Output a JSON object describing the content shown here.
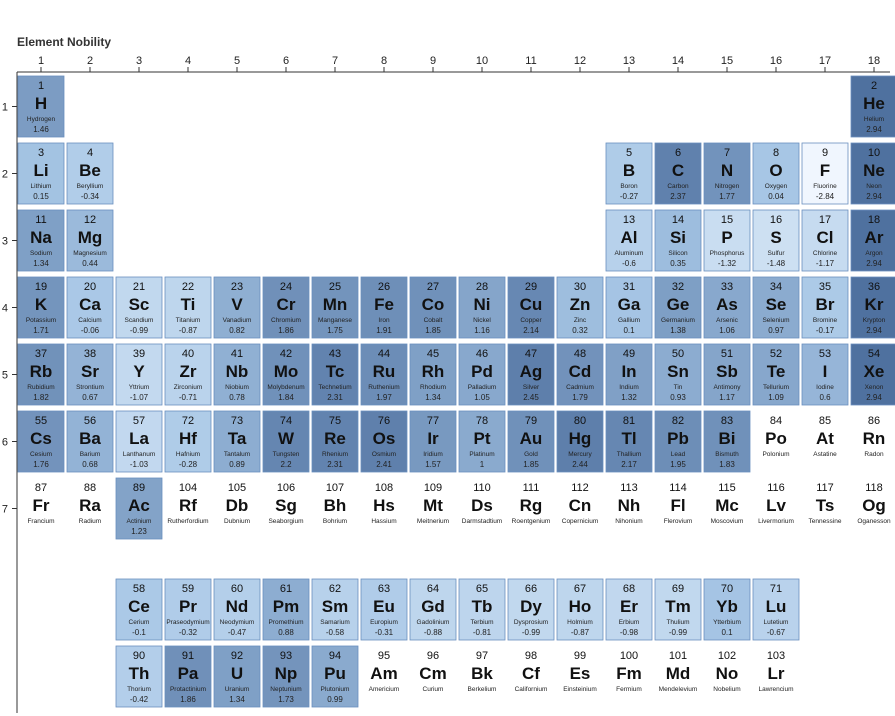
{
  "chart_data": {
    "type": "heatmap",
    "title": "Element Nobility",
    "x_ticks": [
      "1",
      "2",
      "3",
      "4",
      "5",
      "6",
      "7",
      "8",
      "9",
      "10",
      "11",
      "12",
      "13",
      "14",
      "15",
      "16",
      "17",
      "18"
    ],
    "y_ticks": [
      "1",
      "2",
      "3",
      "4",
      "5",
      "6",
      "7"
    ],
    "colors": {
      "high": "#4d6f9e",
      "mid": "#a8c7e6",
      "low": "#f4f9ff",
      "empty": "#ffffff",
      "border": "#6a8fbf"
    },
    "value_range": [
      -3,
      3
    ],
    "elements": [
      {
        "n": "1",
        "sym": "H",
        "name": "Hydrogen",
        "v": "1.46",
        "row": 1,
        "col": 1
      },
      {
        "n": "2",
        "sym": "He",
        "name": "Helium",
        "v": "2.94",
        "row": 1,
        "col": 18
      },
      {
        "n": "3",
        "sym": "Li",
        "name": "Lithium",
        "v": "0.15",
        "row": 2,
        "col": 1
      },
      {
        "n": "4",
        "sym": "Be",
        "name": "Beryllium",
        "v": "-0.34",
        "row": 2,
        "col": 2
      },
      {
        "n": "5",
        "sym": "B",
        "name": "Boron",
        "v": "-0.27",
        "row": 2,
        "col": 13
      },
      {
        "n": "6",
        "sym": "C",
        "name": "Carbon",
        "v": "2.37",
        "row": 2,
        "col": 14
      },
      {
        "n": "7",
        "sym": "N",
        "name": "Nitrogen",
        "v": "1.77",
        "row": 2,
        "col": 15
      },
      {
        "n": "8",
        "sym": "O",
        "name": "Oxygen",
        "v": "0.04",
        "row": 2,
        "col": 16
      },
      {
        "n": "9",
        "sym": "F",
        "name": "Fluorine",
        "v": "-2.84",
        "row": 2,
        "col": 17
      },
      {
        "n": "10",
        "sym": "Ne",
        "name": "Neon",
        "v": "2.94",
        "row": 2,
        "col": 18
      },
      {
        "n": "11",
        "sym": "Na",
        "name": "Sodium",
        "v": "1.34",
        "row": 3,
        "col": 1
      },
      {
        "n": "12",
        "sym": "Mg",
        "name": "Magnesium",
        "v": "0.44",
        "row": 3,
        "col": 2
      },
      {
        "n": "13",
        "sym": "Al",
        "name": "Aluminum",
        "v": "-0.6",
        "row": 3,
        "col": 13
      },
      {
        "n": "14",
        "sym": "Si",
        "name": "Silicon",
        "v": "0.35",
        "row": 3,
        "col": 14
      },
      {
        "n": "15",
        "sym": "P",
        "name": "Phosphorus",
        "v": "-1.32",
        "row": 3,
        "col": 15
      },
      {
        "n": "16",
        "sym": "S",
        "name": "Sulfur",
        "v": "-1.48",
        "row": 3,
        "col": 16
      },
      {
        "n": "17",
        "sym": "Cl",
        "name": "Chlorine",
        "v": "-1.17",
        "row": 3,
        "col": 17
      },
      {
        "n": "18",
        "sym": "Ar",
        "name": "Argon",
        "v": "2.94",
        "row": 3,
        "col": 18
      },
      {
        "n": "19",
        "sym": "K",
        "name": "Potassium",
        "v": "1.71",
        "row": 4,
        "col": 1
      },
      {
        "n": "20",
        "sym": "Ca",
        "name": "Calcium",
        "v": "-0.06",
        "row": 4,
        "col": 2
      },
      {
        "n": "21",
        "sym": "Sc",
        "name": "Scandium",
        "v": "-0.99",
        "row": 4,
        "col": 3
      },
      {
        "n": "22",
        "sym": "Ti",
        "name": "Titanium",
        "v": "-0.87",
        "row": 4,
        "col": 4
      },
      {
        "n": "23",
        "sym": "V",
        "name": "Vanadium",
        "v": "0.82",
        "row": 4,
        "col": 5
      },
      {
        "n": "24",
        "sym": "Cr",
        "name": "Chromium",
        "v": "1.86",
        "row": 4,
        "col": 6
      },
      {
        "n": "25",
        "sym": "Mn",
        "name": "Manganese",
        "v": "1.75",
        "row": 4,
        "col": 7
      },
      {
        "n": "26",
        "sym": "Fe",
        "name": "Iron",
        "v": "1.91",
        "row": 4,
        "col": 8
      },
      {
        "n": "27",
        "sym": "Co",
        "name": "Cobalt",
        "v": "1.85",
        "row": 4,
        "col": 9
      },
      {
        "n": "28",
        "sym": "Ni",
        "name": "Nickel",
        "v": "1.16",
        "row": 4,
        "col": 10
      },
      {
        "n": "29",
        "sym": "Cu",
        "name": "Copper",
        "v": "2.14",
        "row": 4,
        "col": 11
      },
      {
        "n": "30",
        "sym": "Zn",
        "name": "Zinc",
        "v": "0.32",
        "row": 4,
        "col": 12
      },
      {
        "n": "31",
        "sym": "Ga",
        "name": "Gallium",
        "v": "0.1",
        "row": 4,
        "col": 13
      },
      {
        "n": "32",
        "sym": "Ge",
        "name": "Germanium",
        "v": "1.38",
        "row": 4,
        "col": 14
      },
      {
        "n": "33",
        "sym": "As",
        "name": "Arsenic",
        "v": "1.06",
        "row": 4,
        "col": 15
      },
      {
        "n": "34",
        "sym": "Se",
        "name": "Selenium",
        "v": "0.97",
        "row": 4,
        "col": 16
      },
      {
        "n": "35",
        "sym": "Br",
        "name": "Bromine",
        "v": "-0.17",
        "row": 4,
        "col": 17
      },
      {
        "n": "36",
        "sym": "Kr",
        "name": "Krypton",
        "v": "2.94",
        "row": 4,
        "col": 18
      },
      {
        "n": "37",
        "sym": "Rb",
        "name": "Rubidium",
        "v": "1.82",
        "row": 5,
        "col": 1
      },
      {
        "n": "38",
        "sym": "Sr",
        "name": "Strontium",
        "v": "0.67",
        "row": 5,
        "col": 2
      },
      {
        "n": "39",
        "sym": "Y",
        "name": "Yttrium",
        "v": "-1.07",
        "row": 5,
        "col": 3
      },
      {
        "n": "40",
        "sym": "Zr",
        "name": "Zirconium",
        "v": "-0.71",
        "row": 5,
        "col": 4
      },
      {
        "n": "41",
        "sym": "Nb",
        "name": "Niobium",
        "v": "0.78",
        "row": 5,
        "col": 5
      },
      {
        "n": "42",
        "sym": "Mo",
        "name": "Molybdenum",
        "v": "1.84",
        "row": 5,
        "col": 6
      },
      {
        "n": "43",
        "sym": "Tc",
        "name": "Technetium",
        "v": "2.31",
        "row": 5,
        "col": 7
      },
      {
        "n": "44",
        "sym": "Ru",
        "name": "Ruthenium",
        "v": "1.97",
        "row": 5,
        "col": 8
      },
      {
        "n": "45",
        "sym": "Rh",
        "name": "Rhodium",
        "v": "1.34",
        "row": 5,
        "col": 9
      },
      {
        "n": "46",
        "sym": "Pd",
        "name": "Palladium",
        "v": "1.05",
        "row": 5,
        "col": 10
      },
      {
        "n": "47",
        "sym": "Ag",
        "name": "Silver",
        "v": "2.45",
        "row": 5,
        "col": 11
      },
      {
        "n": "48",
        "sym": "Cd",
        "name": "Cadmium",
        "v": "1.79",
        "row": 5,
        "col": 12
      },
      {
        "n": "49",
        "sym": "In",
        "name": "Indium",
        "v": "1.32",
        "row": 5,
        "col": 13
      },
      {
        "n": "50",
        "sym": "Sn",
        "name": "Tin",
        "v": "0.93",
        "row": 5,
        "col": 14
      },
      {
        "n": "51",
        "sym": "Sb",
        "name": "Antimony",
        "v": "1.17",
        "row": 5,
        "col": 15
      },
      {
        "n": "52",
        "sym": "Te",
        "name": "Tellurium",
        "v": "1.09",
        "row": 5,
        "col": 16
      },
      {
        "n": "53",
        "sym": "I",
        "name": "Iodine",
        "v": "0.6",
        "row": 5,
        "col": 17
      },
      {
        "n": "54",
        "sym": "Xe",
        "name": "Xenon",
        "v": "2.94",
        "row": 5,
        "col": 18
      },
      {
        "n": "55",
        "sym": "Cs",
        "name": "Cesium",
        "v": "1.76",
        "row": 6,
        "col": 1
      },
      {
        "n": "56",
        "sym": "Ba",
        "name": "Barium",
        "v": "0.68",
        "row": 6,
        "col": 2
      },
      {
        "n": "57",
        "sym": "La",
        "name": "Lanthanum",
        "v": "-1.03",
        "row": 6,
        "col": 3
      },
      {
        "n": "72",
        "sym": "Hf",
        "name": "Hafnium",
        "v": "-0.28",
        "row": 6,
        "col": 4
      },
      {
        "n": "73",
        "sym": "Ta",
        "name": "Tantalum",
        "v": "0.89",
        "row": 6,
        "col": 5
      },
      {
        "n": "74",
        "sym": "W",
        "name": "Tungsten",
        "v": "2.2",
        "row": 6,
        "col": 6
      },
      {
        "n": "75",
        "sym": "Re",
        "name": "Rhenium",
        "v": "2.31",
        "row": 6,
        "col": 7
      },
      {
        "n": "76",
        "sym": "Os",
        "name": "Osmium",
        "v": "2.41",
        "row": 6,
        "col": 8
      },
      {
        "n": "77",
        "sym": "Ir",
        "name": "Iridium",
        "v": "1.57",
        "row": 6,
        "col": 9
      },
      {
        "n": "78",
        "sym": "Pt",
        "name": "Platinum",
        "v": "1",
        "row": 6,
        "col": 10
      },
      {
        "n": "79",
        "sym": "Au",
        "name": "Gold",
        "v": "1.85",
        "row": 6,
        "col": 11
      },
      {
        "n": "80",
        "sym": "Hg",
        "name": "Mercury",
        "v": "2.44",
        "row": 6,
        "col": 12
      },
      {
        "n": "81",
        "sym": "Tl",
        "name": "Thallium",
        "v": "2.17",
        "row": 6,
        "col": 13
      },
      {
        "n": "82",
        "sym": "Pb",
        "name": "Lead",
        "v": "1.95",
        "row": 6,
        "col": 14
      },
      {
        "n": "83",
        "sym": "Bi",
        "name": "Bismuth",
        "v": "1.83",
        "row": 6,
        "col": 15
      },
      {
        "n": "84",
        "sym": "Po",
        "name": "Polonium",
        "v": null,
        "row": 6,
        "col": 16
      },
      {
        "n": "85",
        "sym": "At",
        "name": "Astatine",
        "v": null,
        "row": 6,
        "col": 17
      },
      {
        "n": "86",
        "sym": "Rn",
        "name": "Radon",
        "v": null,
        "row": 6,
        "col": 18
      },
      {
        "n": "87",
        "sym": "Fr",
        "name": "Francium",
        "v": null,
        "row": 7,
        "col": 1
      },
      {
        "n": "88",
        "sym": "Ra",
        "name": "Radium",
        "v": null,
        "row": 7,
        "col": 2
      },
      {
        "n": "89",
        "sym": "Ac",
        "name": "Actinium",
        "v": "1.23",
        "row": 7,
        "col": 3
      },
      {
        "n": "104",
        "sym": "Rf",
        "name": "Rutherfordium",
        "v": null,
        "row": 7,
        "col": 4
      },
      {
        "n": "105",
        "sym": "Db",
        "name": "Dubnium",
        "v": null,
        "row": 7,
        "col": 5
      },
      {
        "n": "106",
        "sym": "Sg",
        "name": "Seaborgium",
        "v": null,
        "row": 7,
        "col": 6
      },
      {
        "n": "107",
        "sym": "Bh",
        "name": "Bohrium",
        "v": null,
        "row": 7,
        "col": 7
      },
      {
        "n": "108",
        "sym": "Hs",
        "name": "Hassium",
        "v": null,
        "row": 7,
        "col": 8
      },
      {
        "n": "109",
        "sym": "Mt",
        "name": "Meitnerium",
        "v": null,
        "row": 7,
        "col": 9
      },
      {
        "n": "110",
        "sym": "Ds",
        "name": "Darmstadtium",
        "v": null,
        "row": 7,
        "col": 10
      },
      {
        "n": "111",
        "sym": "Rg",
        "name": "Roentgenium",
        "v": null,
        "row": 7,
        "col": 11
      },
      {
        "n": "112",
        "sym": "Cn",
        "name": "Copernicium",
        "v": null,
        "row": 7,
        "col": 12
      },
      {
        "n": "113",
        "sym": "Nh",
        "name": "Nihonium",
        "v": null,
        "row": 7,
        "col": 13
      },
      {
        "n": "114",
        "sym": "Fl",
        "name": "Flerovium",
        "v": null,
        "row": 7,
        "col": 14
      },
      {
        "n": "115",
        "sym": "Mc",
        "name": "Moscovium",
        "v": null,
        "row": 7,
        "col": 15
      },
      {
        "n": "116",
        "sym": "Lv",
        "name": "Livermorium",
        "v": null,
        "row": 7,
        "col": 16
      },
      {
        "n": "117",
        "sym": "Ts",
        "name": "Tennessine",
        "v": null,
        "row": 7,
        "col": 17
      },
      {
        "n": "118",
        "sym": "Og",
        "name": "Oganesson",
        "v": null,
        "row": 7,
        "col": 18
      },
      {
        "n": "58",
        "sym": "Ce",
        "name": "Cerium",
        "v": "-0.1",
        "row": 9,
        "col": 3
      },
      {
        "n": "59",
        "sym": "Pr",
        "name": "Praseodymium",
        "v": "-0.32",
        "row": 9,
        "col": 4
      },
      {
        "n": "60",
        "sym": "Nd",
        "name": "Neodymium",
        "v": "-0.47",
        "row": 9,
        "col": 5
      },
      {
        "n": "61",
        "sym": "Pm",
        "name": "Promethium",
        "v": "0.88",
        "row": 9,
        "col": 6
      },
      {
        "n": "62",
        "sym": "Sm",
        "name": "Samarium",
        "v": "-0.58",
        "row": 9,
        "col": 7
      },
      {
        "n": "63",
        "sym": "Eu",
        "name": "Europium",
        "v": "-0.31",
        "row": 9,
        "col": 8
      },
      {
        "n": "64",
        "sym": "Gd",
        "name": "Gadolinium",
        "v": "-0.88",
        "row": 9,
        "col": 9
      },
      {
        "n": "65",
        "sym": "Tb",
        "name": "Terbium",
        "v": "-0.81",
        "row": 9,
        "col": 10
      },
      {
        "n": "66",
        "sym": "Dy",
        "name": "Dysprosium",
        "v": "-0.99",
        "row": 9,
        "col": 11
      },
      {
        "n": "67",
        "sym": "Ho",
        "name": "Holmium",
        "v": "-0.87",
        "row": 9,
        "col": 12
      },
      {
        "n": "68",
        "sym": "Er",
        "name": "Erbium",
        "v": "-0.98",
        "row": 9,
        "col": 13
      },
      {
        "n": "69",
        "sym": "Tm",
        "name": "Thulium",
        "v": "-0.99",
        "row": 9,
        "col": 14
      },
      {
        "n": "70",
        "sym": "Yb",
        "name": "Ytterbium",
        "v": "0.1",
        "row": 9,
        "col": 15
      },
      {
        "n": "71",
        "sym": "Lu",
        "name": "Lutetium",
        "v": "-0.67",
        "row": 9,
        "col": 16
      },
      {
        "n": "90",
        "sym": "Th",
        "name": "Thorium",
        "v": "-0.42",
        "row": 10,
        "col": 3
      },
      {
        "n": "91",
        "sym": "Pa",
        "name": "Protactinium",
        "v": "1.86",
        "row": 10,
        "col": 4
      },
      {
        "n": "92",
        "sym": "U",
        "name": "Uranium",
        "v": "1.34",
        "row": 10,
        "col": 5
      },
      {
        "n": "93",
        "sym": "Np",
        "name": "Neptunium",
        "v": "1.73",
        "row": 10,
        "col": 6
      },
      {
        "n": "94",
        "sym": "Pu",
        "name": "Plutonium",
        "v": "0.99",
        "row": 10,
        "col": 7
      },
      {
        "n": "95",
        "sym": "Am",
        "name": "Americium",
        "v": null,
        "row": 10,
        "col": 8
      },
      {
        "n": "96",
        "sym": "Cm",
        "name": "Curium",
        "v": null,
        "row": 10,
        "col": 9
      },
      {
        "n": "97",
        "sym": "Bk",
        "name": "Berkelium",
        "v": null,
        "row": 10,
        "col": 10
      },
      {
        "n": "98",
        "sym": "Cf",
        "name": "Californium",
        "v": null,
        "row": 10,
        "col": 11
      },
      {
        "n": "99",
        "sym": "Es",
        "name": "Einsteinium",
        "v": null,
        "row": 10,
        "col": 12
      },
      {
        "n": "100",
        "sym": "Fm",
        "name": "Fermium",
        "v": null,
        "row": 10,
        "col": 13
      },
      {
        "n": "101",
        "sym": "Md",
        "name": "Mendelevium",
        "v": null,
        "row": 10,
        "col": 14
      },
      {
        "n": "102",
        "sym": "No",
        "name": "Nobelium",
        "v": null,
        "row": 10,
        "col": 15
      },
      {
        "n": "103",
        "sym": "Lr",
        "name": "Lawrencium",
        "v": null,
        "row": 10,
        "col": 16
      }
    ]
  }
}
